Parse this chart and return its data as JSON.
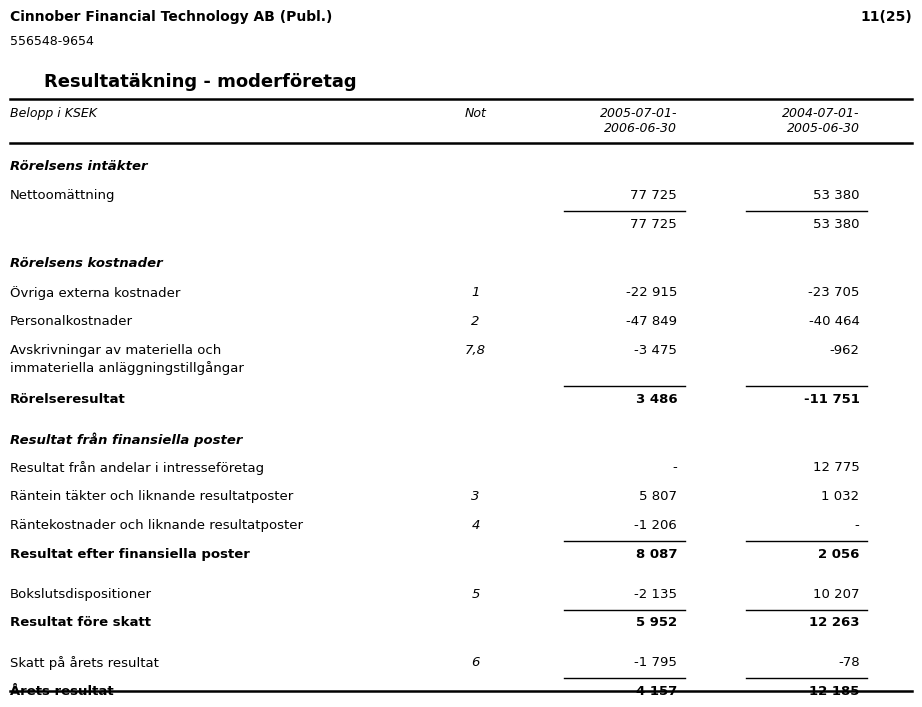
{
  "company": "Cinnober Financial Technology AB (Publ.)",
  "org_nr": "556548-9654",
  "page": "11(25)",
  "title": "Resultatäkning - moderföretag",
  "col_headers": {
    "label": "Belopp i KSEK",
    "not": "Not",
    "col1": "2005-07-01-\n2006-06-30",
    "col2": "2004-07-01-\n2005-06-30"
  },
  "rows": [
    {
      "label": "Rörelsens intäkter",
      "not": "",
      "col1": "",
      "col2": "",
      "style": "bold_italic",
      "line_below": false,
      "extra_space_before": false
    },
    {
      "label": "Nettoomättning",
      "not": "",
      "col1": "77 725",
      "col2": "53 380",
      "style": "normal",
      "line_below": true,
      "extra_space_before": false
    },
    {
      "label": "",
      "not": "",
      "col1": "77 725",
      "col2": "53 380",
      "style": "normal",
      "line_below": false,
      "extra_space_before": false
    },
    {
      "label": "Rörelsens kostnader",
      "not": "",
      "col1": "",
      "col2": "",
      "style": "bold_italic",
      "line_below": false,
      "extra_space_before": true
    },
    {
      "label": "Övriga externa kostnader",
      "not": "1",
      "col1": "-22 915",
      "col2": "-23 705",
      "style": "normal",
      "line_below": false,
      "extra_space_before": false
    },
    {
      "label": "Personalkostnader",
      "not": "2",
      "col1": "-47 849",
      "col2": "-40 464",
      "style": "normal",
      "line_below": false,
      "extra_space_before": false
    },
    {
      "label": "Avskrivningar av materiella och\nimmateriella anläggningstillgångar",
      "not": "7,8",
      "col1": "-3 475",
      "col2": "-962",
      "style": "normal",
      "line_below": true,
      "extra_space_before": false
    },
    {
      "label": "Rörelseresultat",
      "not": "",
      "col1": "3 486",
      "col2": "-11 751",
      "style": "bold",
      "line_below": false,
      "extra_space_before": false
    },
    {
      "label": "Resultat från finansiella poster",
      "not": "",
      "col1": "",
      "col2": "",
      "style": "bold_italic",
      "line_below": false,
      "extra_space_before": true
    },
    {
      "label": "Resultat från andelar i intresseföretag",
      "not": "",
      "col1": "-",
      "col2": "12 775",
      "style": "normal",
      "line_below": false,
      "extra_space_before": false
    },
    {
      "label": "Räntein täkter och liknande resultatposter",
      "not": "3",
      "col1": "5 807",
      "col2": "1 032",
      "style": "normal",
      "line_below": false,
      "extra_space_before": false
    },
    {
      "label": "Räntekostnader och liknande resultatposter",
      "not": "4",
      "col1": "-1 206",
      "col2": "-",
      "style": "normal",
      "line_below": true,
      "extra_space_before": false
    },
    {
      "label": "Resultat efter finansiella poster",
      "not": "",
      "col1": "8 087",
      "col2": "2 056",
      "style": "bold",
      "line_below": false,
      "extra_space_before": false
    },
    {
      "label": "Bokslutsdispositioner",
      "not": "5",
      "col1": "-2 135",
      "col2": "10 207",
      "style": "normal",
      "line_below": true,
      "extra_space_before": true
    },
    {
      "label": "Resultat före skatt",
      "not": "",
      "col1": "5 952",
      "col2": "12 263",
      "style": "bold",
      "line_below": false,
      "extra_space_before": false
    },
    {
      "label": "Skatt på årets resultat",
      "not": "6",
      "col1": "-1 795",
      "col2": "-78",
      "style": "normal",
      "line_below": true,
      "extra_space_before": true
    },
    {
      "label": "Årets resultat",
      "not": "",
      "col1": "4 157",
      "col2": "12 185",
      "style": "bold",
      "line_below": false,
      "extra_space_before": false
    }
  ],
  "bg_color": "#ffffff",
  "text_color": "#000000",
  "line_color": "#000000"
}
